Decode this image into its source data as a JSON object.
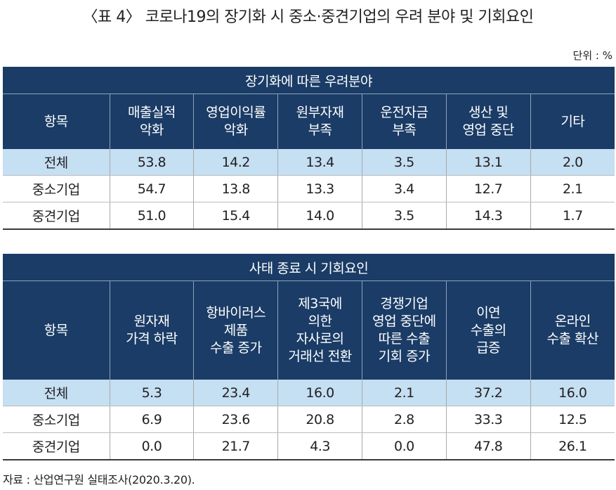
{
  "title": "〈표 4〉 코로나19의 장기화 시 중소·중견기업의 우려 분야 및 기회요인",
  "unit": "단위 : %",
  "table1": {
    "band": "장기화에 따른 우려분야",
    "headers": [
      [
        "항목"
      ],
      [
        "매출실적",
        "악화"
      ],
      [
        "영업이익률",
        "악화"
      ],
      [
        "원부자재",
        "부족"
      ],
      [
        "운전자금",
        "부족"
      ],
      [
        "생산 및",
        "영업 중단"
      ],
      [
        "기타"
      ]
    ],
    "rows": [
      [
        "전체",
        "53.8",
        "14.2",
        "13.4",
        "3.5",
        "13.1",
        "2.0"
      ],
      [
        "중소기업",
        "54.7",
        "13.8",
        "13.3",
        "3.4",
        "12.7",
        "2.1"
      ],
      [
        "중견기업",
        "51.0",
        "15.4",
        "14.0",
        "3.5",
        "14.3",
        "1.7"
      ]
    ]
  },
  "table2": {
    "band": "사태 종료 시 기회요인",
    "headers": [
      [
        "항목"
      ],
      [
        "원자재",
        "가격 하락"
      ],
      [
        "항바이러스",
        "제품",
        "수출 증가"
      ],
      [
        "제3국에",
        "의한",
        "자사로의",
        "거래선 전환"
      ],
      [
        "경쟁기업",
        "영업 중단에",
        "따른 수출",
        "기회 증가"
      ],
      [
        "이연",
        "수출의",
        "급증"
      ],
      [
        "온라인",
        "수출 확산"
      ]
    ],
    "rows": [
      [
        "전체",
        "5.3",
        "23.4",
        "16.0",
        "2.1",
        "37.2",
        "16.0"
      ],
      [
        "중소기업",
        "6.9",
        "23.6",
        "20.8",
        "2.8",
        "33.3",
        "12.5"
      ],
      [
        "중견기업",
        "0.0",
        "21.7",
        "4.3",
        "0.0",
        "47.8",
        "26.1"
      ]
    ]
  },
  "source": "자료 : 산업연구원 실태조사(2020.3.20)."
}
